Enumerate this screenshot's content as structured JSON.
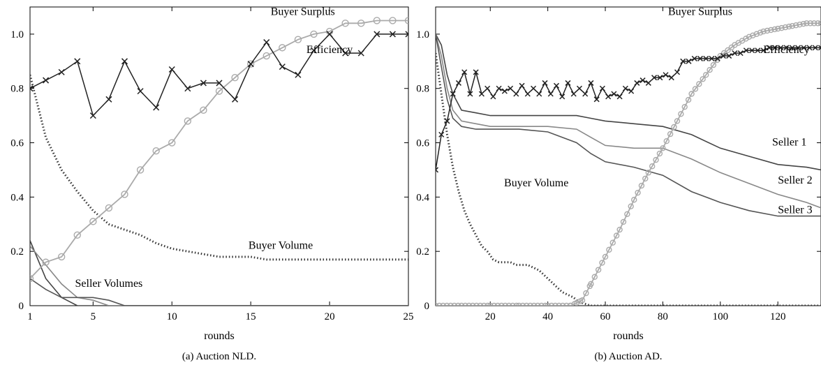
{
  "chart_data": [
    {
      "type": "line",
      "caption": "(a) Auction NLD.",
      "xlabel": "rounds",
      "ylabel": "",
      "xlim": [
        1,
        25
      ],
      "ylim": [
        0,
        1.1
      ],
      "xticks": [
        1,
        5,
        10,
        15,
        20,
        25
      ],
      "yticks": [
        0,
        0.2,
        0.4,
        0.6,
        0.8,
        1.0
      ],
      "xtick_labels": [
        "1",
        "5",
        "10",
        "15",
        "20",
        "25"
      ],
      "ytick_labels": [
        "0",
        "0.2",
        "0.4",
        "0.6",
        "0.8",
        "1.0"
      ],
      "grid": false,
      "series": [
        {
          "key": "efficiency",
          "style": "cross",
          "color": "#222222",
          "x": [
            1,
            2,
            3,
            4,
            5,
            6,
            7,
            8,
            9,
            10,
            11,
            12,
            13,
            14,
            15,
            16,
            17,
            18,
            19,
            20,
            21,
            22,
            23,
            24,
            25
          ],
          "y": [
            0.8,
            0.83,
            0.86,
            0.9,
            0.7,
            0.76,
            0.9,
            0.79,
            0.73,
            0.87,
            0.8,
            0.82,
            0.82,
            0.76,
            0.89,
            0.97,
            0.88,
            0.85,
            0.94,
            1.0,
            0.93,
            0.93,
            1.0,
            1.0,
            1.0
          ]
        },
        {
          "key": "buyer_surplus",
          "style": "circle",
          "color": "#aaaaaa",
          "x": [
            1,
            2,
            3,
            4,
            5,
            6,
            7,
            8,
            9,
            10,
            11,
            12,
            13,
            14,
            15,
            16,
            17,
            18,
            19,
            20,
            21,
            22,
            23,
            24,
            25
          ],
          "y": [
            0.1,
            0.16,
            0.18,
            0.26,
            0.31,
            0.36,
            0.41,
            0.5,
            0.57,
            0.6,
            0.68,
            0.72,
            0.79,
            0.84,
            0.89,
            0.92,
            0.95,
            0.98,
            1.0,
            1.01,
            1.04,
            1.04,
            1.05,
            1.05,
            1.05
          ]
        },
        {
          "key": "buyer_volume",
          "style": "dotted",
          "color": "#333333",
          "x": [
            1,
            2,
            3,
            4,
            5,
            6,
            7,
            8,
            9,
            10,
            11,
            12,
            13,
            14,
            15,
            16,
            17,
            18,
            19,
            20,
            21,
            22,
            23,
            24,
            25
          ],
          "y": [
            0.85,
            0.62,
            0.5,
            0.42,
            0.35,
            0.3,
            0.28,
            0.26,
            0.23,
            0.21,
            0.2,
            0.19,
            0.18,
            0.18,
            0.18,
            0.17,
            0.17,
            0.17,
            0.17,
            0.17,
            0.17,
            0.17,
            0.17,
            0.17,
            0.17
          ]
        },
        {
          "key": "seller_volume_1",
          "style": "line",
          "color": "#444444",
          "x": [
            1,
            2,
            3,
            4,
            5,
            6,
            7,
            8,
            25
          ],
          "y": [
            0.24,
            0.1,
            0.03,
            0.0,
            0.0,
            0.0,
            0.0,
            0.0,
            0.0
          ]
        },
        {
          "key": "seller_volume_2",
          "style": "line",
          "color": "#888888",
          "x": [
            1,
            2,
            3,
            4,
            5,
            6,
            7,
            25
          ],
          "y": [
            0.22,
            0.15,
            0.08,
            0.03,
            0.02,
            0.0,
            0.0,
            0.0
          ]
        },
        {
          "key": "seller_volume_3",
          "style": "line",
          "color": "#555555",
          "x": [
            1,
            2,
            3,
            4,
            5,
            6,
            7,
            8,
            25
          ],
          "y": [
            0.1,
            0.06,
            0.03,
            0.03,
            0.03,
            0.02,
            0.0,
            0.0,
            0.0
          ]
        }
      ],
      "annotations": [
        {
          "text": "Buyer Surplus",
          "x": 18.3,
          "y": 1.07
        },
        {
          "text": "Efficiency",
          "x": 20.0,
          "y": 0.93
        },
        {
          "text": "Buyer Volume",
          "x": 16.9,
          "y": 0.21
        },
        {
          "text": "Seller Volumes",
          "x": 6.0,
          "y": 0.07
        }
      ]
    },
    {
      "type": "line",
      "caption": "(b) Auction AD.",
      "xlabel": "rounds",
      "ylabel": "",
      "xlim": [
        1,
        135
      ],
      "ylim": [
        0,
        1.1
      ],
      "xticks": [
        20,
        40,
        60,
        80,
        100,
        120
      ],
      "yticks": [
        0,
        0.2,
        0.4,
        0.6,
        0.8,
        1.0
      ],
      "xtick_labels": [
        "20",
        "40",
        "60",
        "80",
        "100",
        "120"
      ],
      "ytick_labels": [
        "0",
        "0.2",
        "0.4",
        "0.6",
        "0.8",
        "1.0"
      ],
      "grid": false,
      "series": [
        {
          "key": "efficiency",
          "style": "cross",
          "color": "#222222",
          "x": [
            1,
            3,
            5,
            7,
            9,
            11,
            13,
            15,
            17,
            19,
            21,
            23,
            25,
            27,
            29,
            31,
            33,
            35,
            37,
            39,
            41,
            43,
            45,
            47,
            49,
            51,
            53,
            55,
            57,
            59,
            61,
            63,
            65,
            67,
            69,
            71,
            73,
            75,
            77,
            79,
            81,
            83,
            85,
            87,
            89,
            91,
            93,
            95,
            97,
            99,
            101,
            103,
            105,
            107,
            109,
            111,
            113,
            115,
            117,
            119,
            121,
            123,
            125,
            127,
            129,
            131,
            133,
            135
          ],
          "y": [
            0.5,
            0.63,
            0.68,
            0.78,
            0.82,
            0.86,
            0.78,
            0.86,
            0.78,
            0.8,
            0.77,
            0.8,
            0.79,
            0.8,
            0.78,
            0.81,
            0.78,
            0.8,
            0.78,
            0.82,
            0.78,
            0.81,
            0.77,
            0.82,
            0.78,
            0.8,
            0.78,
            0.82,
            0.76,
            0.8,
            0.77,
            0.78,
            0.77,
            0.8,
            0.79,
            0.82,
            0.83,
            0.82,
            0.84,
            0.84,
            0.85,
            0.84,
            0.86,
            0.9,
            0.9,
            0.91,
            0.91,
            0.91,
            0.91,
            0.91,
            0.92,
            0.92,
            0.93,
            0.93,
            0.94,
            0.94,
            0.94,
            0.94,
            0.95,
            0.95,
            0.95,
            0.95,
            0.95,
            0.95,
            0.95,
            0.95,
            0.95,
            0.95
          ]
        },
        {
          "key": "buyer_surplus",
          "style": "circle",
          "color": "#aaaaaa",
          "x": [
            1,
            10,
            20,
            30,
            40,
            48,
            50,
            52,
            55,
            60,
            65,
            70,
            75,
            80,
            85,
            90,
            95,
            100,
            105,
            110,
            115,
            120,
            125,
            130,
            135
          ],
          "y": [
            0,
            0,
            0,
            0,
            0,
            0,
            0.01,
            0.02,
            0.08,
            0.18,
            0.28,
            0.39,
            0.49,
            0.58,
            0.68,
            0.78,
            0.85,
            0.92,
            0.96,
            0.99,
            1.01,
            1.02,
            1.03,
            1.04,
            1.04
          ]
        },
        {
          "key": "buyer_volume",
          "style": "dotted",
          "color": "#333333",
          "x": [
            1,
            3,
            5,
            7,
            9,
            11,
            13,
            15,
            17,
            19,
            21,
            23,
            25,
            27,
            29,
            31,
            33,
            35,
            37,
            39,
            41,
            43,
            45,
            47,
            49,
            50,
            52,
            55,
            60,
            70,
            80,
            90,
            100,
            110,
            120,
            135
          ],
          "y": [
            0.93,
            0.78,
            0.63,
            0.51,
            0.42,
            0.35,
            0.3,
            0.26,
            0.22,
            0.2,
            0.17,
            0.16,
            0.16,
            0.16,
            0.15,
            0.15,
            0.15,
            0.14,
            0.13,
            0.11,
            0.09,
            0.07,
            0.05,
            0.04,
            0.03,
            0.02,
            0.01,
            0.0,
            0.0,
            0.0,
            0.0,
            0.0,
            0.0,
            0.0,
            0.0,
            0.0
          ]
        },
        {
          "key": "seller_1",
          "style": "line",
          "color": "#444444",
          "x": [
            1,
            3,
            5,
            7,
            10,
            15,
            20,
            30,
            40,
            50,
            55,
            60,
            70,
            80,
            90,
            100,
            110,
            120,
            130,
            135
          ],
          "y": [
            1.0,
            0.96,
            0.85,
            0.78,
            0.72,
            0.71,
            0.7,
            0.7,
            0.7,
            0.7,
            0.69,
            0.68,
            0.67,
            0.66,
            0.63,
            0.58,
            0.55,
            0.52,
            0.51,
            0.5
          ]
        },
        {
          "key": "seller_2",
          "style": "line",
          "color": "#888888",
          "x": [
            1,
            3,
            5,
            7,
            10,
            15,
            20,
            30,
            40,
            50,
            55,
            60,
            70,
            80,
            90,
            100,
            110,
            120,
            130,
            135
          ],
          "y": [
            1.0,
            0.92,
            0.8,
            0.72,
            0.68,
            0.67,
            0.66,
            0.66,
            0.66,
            0.65,
            0.62,
            0.59,
            0.58,
            0.58,
            0.54,
            0.49,
            0.45,
            0.41,
            0.38,
            0.36
          ]
        },
        {
          "key": "seller_3",
          "style": "line",
          "color": "#555555",
          "x": [
            1,
            3,
            5,
            7,
            10,
            15,
            20,
            30,
            40,
            50,
            55,
            60,
            70,
            80,
            90,
            100,
            110,
            120,
            130,
            135
          ],
          "y": [
            1.0,
            0.88,
            0.76,
            0.69,
            0.66,
            0.65,
            0.65,
            0.65,
            0.64,
            0.6,
            0.56,
            0.53,
            0.51,
            0.48,
            0.42,
            0.38,
            0.35,
            0.33,
            0.33,
            0.33
          ]
        }
      ],
      "annotations": [
        {
          "text": "Buyer Surplus",
          "x": 93.0,
          "y": 1.07
        },
        {
          "text": "Efficiency",
          "x": 123.0,
          "y": 0.93
        },
        {
          "text": "Buyer Volume",
          "x": 36.0,
          "y": 0.44
        },
        {
          "text": "Seller 1",
          "x": 124.0,
          "y": 0.59
        },
        {
          "text": "Seller 2",
          "x": 126.0,
          "y": 0.45
        },
        {
          "text": "Seller 3",
          "x": 126.0,
          "y": 0.34
        }
      ]
    }
  ]
}
